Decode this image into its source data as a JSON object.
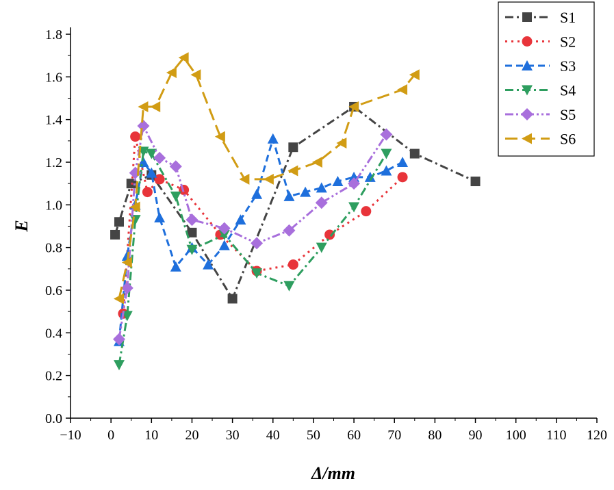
{
  "chart_data": {
    "type": "line",
    "title": "",
    "xlabel": "Δ/mm",
    "ylabel": "E",
    "xlim": [
      -10,
      120
    ],
    "ylim": [
      0,
      1.8
    ],
    "xticks": [
      -10,
      0,
      10,
      20,
      30,
      40,
      50,
      60,
      70,
      80,
      90,
      100,
      110,
      120
    ],
    "yticks": [
      "0.0",
      "0.2",
      "0.4",
      "0.6",
      "0.8",
      "1.0",
      "1.2",
      "1.4",
      "1.6",
      "1.8"
    ],
    "grid": false,
    "legend_position": "top-right",
    "series": [
      {
        "name": "S1",
        "color": "#444444",
        "marker": "square",
        "dash": "dashdot",
        "x": [
          1,
          2,
          5,
          10,
          20,
          30,
          45,
          60,
          75,
          90
        ],
        "y": [
          0.86,
          0.92,
          1.1,
          1.14,
          0.87,
          0.56,
          1.27,
          1.46,
          1.24,
          1.11
        ]
      },
      {
        "name": "S2",
        "color": "#e8343a",
        "marker": "circle",
        "dash": "dot",
        "x": [
          3,
          6,
          9,
          12,
          18,
          27,
          36,
          45,
          54,
          63,
          72
        ],
        "y": [
          0.49,
          1.32,
          1.06,
          1.12,
          1.07,
          0.86,
          0.69,
          0.72,
          0.86,
          0.97,
          1.13
        ]
      },
      {
        "name": "S3",
        "color": "#1e6fdc",
        "marker": "triangle-up",
        "dash": "dash",
        "x": [
          2,
          4,
          6,
          8,
          10,
          12,
          16,
          20,
          24,
          28,
          32,
          36,
          40,
          44,
          48,
          52,
          56,
          60,
          64,
          68,
          72
        ],
        "y": [
          0.36,
          0.76,
          1.0,
          1.2,
          1.15,
          0.94,
          0.71,
          0.8,
          0.72,
          0.81,
          0.93,
          1.05,
          1.31,
          1.04,
          1.06,
          1.08,
          1.11,
          1.13,
          1.13,
          1.16,
          1.2
        ]
      },
      {
        "name": "S4",
        "color": "#2e9e5f",
        "marker": "triangle-down",
        "dash": "dashdot",
        "x": [
          2,
          4,
          6,
          8,
          10,
          16,
          20,
          28,
          36,
          44,
          52,
          60,
          68
        ],
        "y": [
          0.25,
          0.48,
          0.93,
          1.25,
          1.24,
          1.04,
          0.79,
          0.86,
          0.68,
          0.62,
          0.8,
          0.99,
          1.24
        ]
      },
      {
        "name": "S5",
        "color": "#a86fdc",
        "marker": "diamond",
        "dash": "dashdotdot",
        "x": [
          2,
          4,
          6,
          8,
          12,
          16,
          20,
          28,
          36,
          44,
          52,
          60,
          68
        ],
        "y": [
          0.37,
          0.61,
          1.15,
          1.37,
          1.22,
          1.18,
          0.93,
          0.89,
          0.82,
          0.88,
          1.01,
          1.1,
          1.33
        ]
      },
      {
        "name": "S6",
        "color": "#d19c14",
        "marker": "triangle-left",
        "dash": "longdash",
        "x": [
          2,
          4,
          6,
          8,
          11,
          15,
          18,
          21,
          27,
          33,
          39,
          45,
          51,
          57,
          60,
          72,
          75
        ],
        "y": [
          0.56,
          0.73,
          0.99,
          1.46,
          1.46,
          1.62,
          1.69,
          1.61,
          1.32,
          1.12,
          1.12,
          1.16,
          1.2,
          1.29,
          1.46,
          1.54,
          1.61
        ]
      }
    ]
  }
}
